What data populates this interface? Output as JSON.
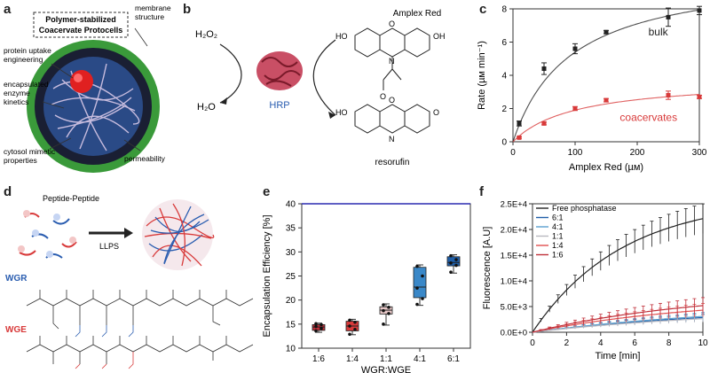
{
  "panels": {
    "a": {
      "label": "a",
      "title_box": "Polymer-stabilized\nCoacervate Protocells",
      "callouts": {
        "membrane": "membrane\nstructure",
        "protein_uptake": "protein uptake\nengineering",
        "enzyme_kinetics": "encapsulated\nenzyme\nkinetics",
        "cytosol": "cytosol mimetic\nproperties",
        "permeability": "permeability"
      },
      "colors": {
        "shell": "#3a9a3a",
        "core": "#1f3a6e",
        "fibers": "#c6b3d9",
        "protein": "#e02020"
      }
    },
    "b": {
      "label": "b",
      "h2o2": "H₂O₂",
      "h2o": "H₂O",
      "enzyme": "HRP",
      "substrate": "Amplex Red",
      "product": "resorufin",
      "oh": "OH",
      "ho": "HO",
      "o": "O",
      "n": "N",
      "colors": {
        "enzyme_text": "#2a5db0",
        "enzyme_body": "#c0304a"
      }
    },
    "c": {
      "label": "c",
      "chart_data": {
        "type": "scatter",
        "xlabel": "Amplex Red (µм)",
        "ylabel": "Rate (µм min⁻¹)",
        "xlim": [
          0,
          300
        ],
        "ylim": [
          0,
          8
        ],
        "xticks": [
          "0",
          "100",
          "200",
          "300"
        ],
        "yticks": [
          "0",
          "2",
          "4",
          "6",
          "8"
        ],
        "series": [
          {
            "name": "bulk",
            "color": "#222222",
            "x": [
              10,
              50,
              100,
              150,
              250,
              300
            ],
            "y": [
              1.1,
              4.4,
              5.6,
              6.6,
              7.5,
              7.9
            ],
            "err": [
              0.15,
              0.35,
              0.3,
              0.1,
              0.55,
              0.25
            ],
            "fit": {
              "vmax": 10.4,
              "km": 93
            }
          },
          {
            "name": "coacervates",
            "color": "#d83a3a",
            "x": [
              10,
              50,
              100,
              150,
              250,
              300
            ],
            "y": [
              0.25,
              1.1,
              2.0,
              2.5,
              2.8,
              2.7
            ],
            "err": [
              0.05,
              0.08,
              0.12,
              0.1,
              0.25,
              0.1
            ],
            "fit": {
              "vmax": 3.8,
              "km": 100
            }
          }
        ]
      }
    },
    "d": {
      "label": "d",
      "caption": "Peptide-Peptide",
      "arrow_label": "LLPS",
      "wgr": "WGR",
      "wge": "WGE",
      "colors": {
        "wgr": "#2a5db0",
        "wge": "#d83a3a"
      }
    },
    "e": {
      "label": "e",
      "chart_data": {
        "type": "box",
        "xlabel": "WGR:WGE",
        "ylabel": "Encapsulation Efficiency [%]",
        "ylim": [
          10,
          40
        ],
        "yticks": [
          "10",
          "15",
          "20",
          "25",
          "30",
          "35",
          "40"
        ],
        "categories": [
          "1:6",
          "1:4",
          "1:1",
          "4:1",
          "6:1"
        ],
        "boxes": [
          {
            "q1": 13.7,
            "median": 14.4,
            "q3": 14.9,
            "min": 13.3,
            "max": 15.2,
            "color": "#c0303a",
            "points": [
              13.6,
              14.1,
              14.5,
              14.9,
              15.1
            ]
          },
          {
            "q1": 13.6,
            "median": 14.6,
            "q3": 15.6,
            "min": 12.8,
            "max": 16.0,
            "color": "#d83a3a",
            "points": [
              12.9,
              13.9,
              14.6,
              15.4,
              15.8
            ]
          },
          {
            "q1": 17.1,
            "median": 17.9,
            "q3": 18.6,
            "min": 14.8,
            "max": 19.2,
            "color": "#e8c8c8",
            "points": [
              15.0,
              17.2,
              17.8,
              18.5,
              19.0
            ]
          },
          {
            "q1": 20.5,
            "median": 22.7,
            "q3": 26.8,
            "min": 18.9,
            "max": 27.3,
            "color": "#3a88c8",
            "points": [
              19.1,
              20.3,
              22.5,
              25.0,
              27.0
            ]
          },
          {
            "q1": 27.1,
            "median": 27.8,
            "q3": 29.0,
            "min": 25.6,
            "max": 29.4,
            "color": "#1f5ea8",
            "points": [
              25.8,
              27.2,
              27.7,
              28.4,
              29.2
            ]
          }
        ],
        "top_line": 40
      }
    },
    "f": {
      "label": "f",
      "chart_data": {
        "type": "line",
        "xlabel": "Time [min]",
        "ylabel": "Fluorescence [A.U]",
        "xlim": [
          0,
          10
        ],
        "ylim": [
          0,
          25000
        ],
        "xticks": [
          "0",
          "2",
          "4",
          "6",
          "8",
          "10"
        ],
        "yticks": [
          "0.0E+0",
          "5.0E+3",
          "1.0E+4",
          "1.5E+4",
          "2.0E+4",
          "2.5E+4"
        ],
        "series": [
          {
            "name": "Free phosphatase",
            "color": "#222222",
            "a": 26000,
            "k": 0.19,
            "err_frac": 0.13
          },
          {
            "name": "6:1",
            "color": "#1f5ea8",
            "a": 5200,
            "k": 0.08,
            "err_frac": 0.25
          },
          {
            "name": "4:1",
            "color": "#5aa0d0",
            "a": 5600,
            "k": 0.08,
            "err_frac": 0.25
          },
          {
            "name": "1:1",
            "color": "#b8b8c0",
            "a": 4800,
            "k": 0.08,
            "err_frac": 0.25
          },
          {
            "name": "1:4",
            "color": "#e05050",
            "a": 6800,
            "k": 0.1,
            "err_frac": 0.3
          },
          {
            "name": "1:6",
            "color": "#c0303a",
            "a": 8200,
            "k": 0.1,
            "err_frac": 0.3
          }
        ]
      }
    }
  }
}
